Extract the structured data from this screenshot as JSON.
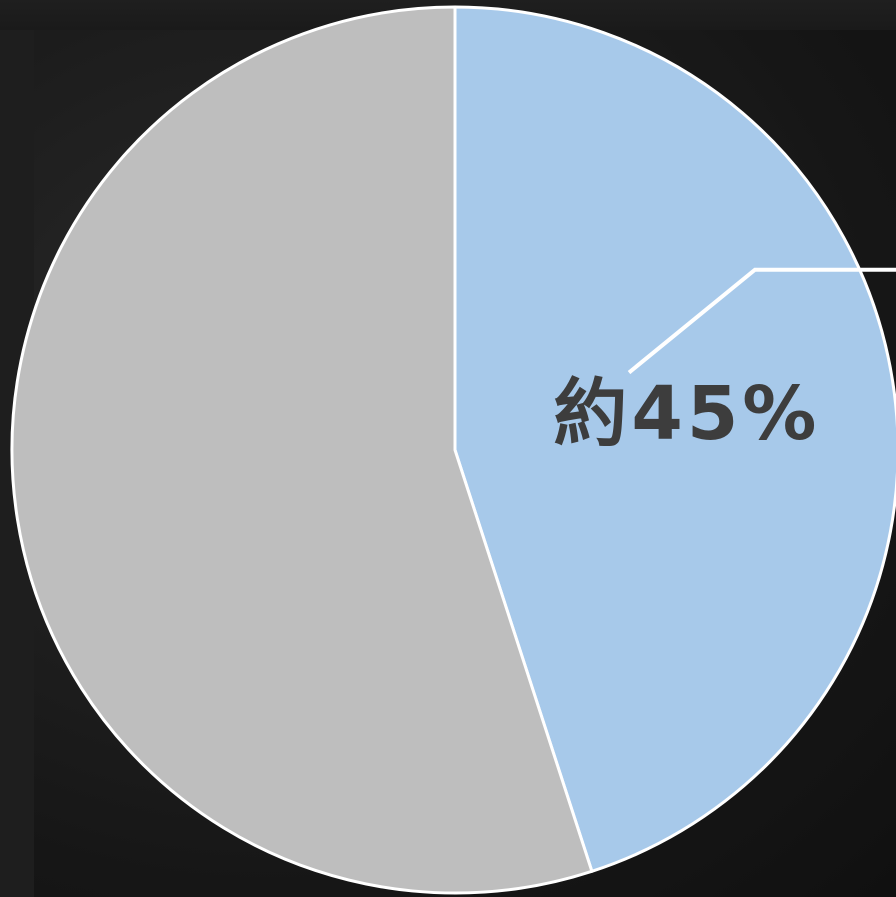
{
  "chart_data": {
    "type": "pie",
    "title": "",
    "slices": [
      {
        "value": 45,
        "label": "約45%",
        "color": "#a7c9ea"
      },
      {
        "value": 55,
        "label": "",
        "color": "#bebebe"
      }
    ],
    "start_angle_deg": 0,
    "direction": "clockwise",
    "edge_color": "#ffffff",
    "label_color": "#3d3d3d",
    "leader_line_color": "#ffffff",
    "background_color": "#1b1b1b"
  }
}
